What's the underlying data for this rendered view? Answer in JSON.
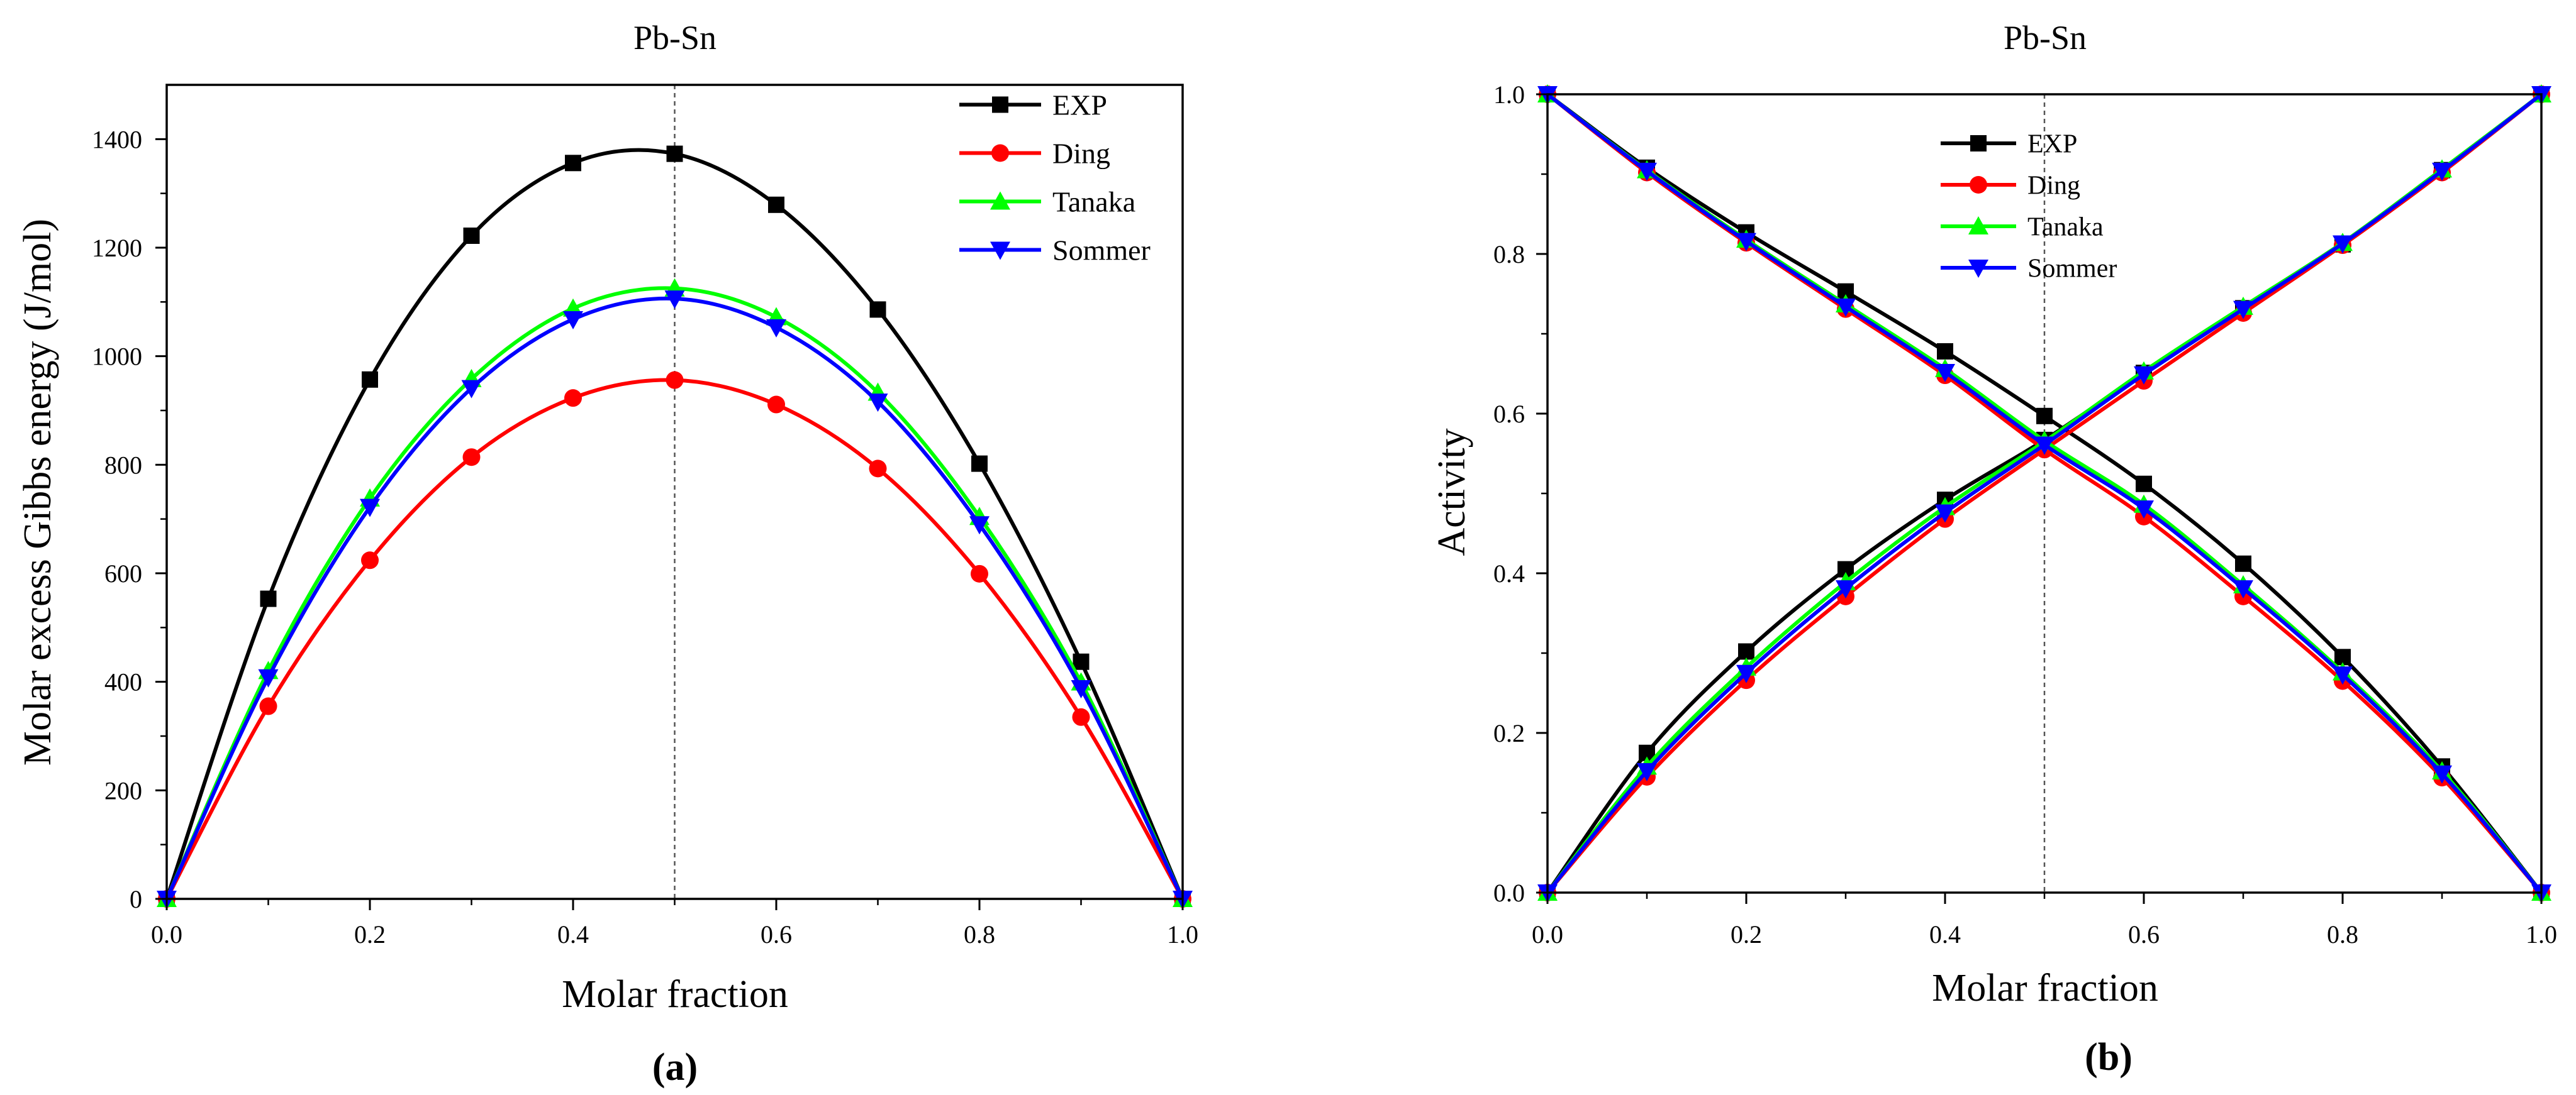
{
  "chart_data": [
    {
      "type": "line",
      "title": "Pb-Sn",
      "panel_label": "(a)",
      "xlabel": "Molar fraction",
      "ylabel": "Molar excess Gibbs energy (J/mol)",
      "xlim": [
        0,
        1
      ],
      "ylim": [
        0,
        1500
      ],
      "xticks": [
        "0.0",
        "0.2",
        "0.4",
        "0.6",
        "0.8",
        "1.0"
      ],
      "yticks": [
        "0",
        "200",
        "400",
        "600",
        "800",
        "1000",
        "1200",
        "1400"
      ],
      "reference_line_x": 0.5,
      "legend_position": "top-right",
      "x": [
        0,
        0.1,
        0.2,
        0.3,
        0.4,
        0.5,
        0.6,
        0.7,
        0.8,
        0.9,
        1.0
      ],
      "series": [
        {
          "name": "EXP",
          "color": "#000000",
          "marker": "square",
          "values": [
            0,
            553,
            957,
            1222,
            1356,
            1373,
            1279,
            1086,
            802,
            437,
            0
          ]
        },
        {
          "name": "Ding",
          "color": "#ff0000",
          "marker": "circle",
          "values": [
            0,
            355,
            624,
            814,
            923,
            956,
            911,
            793,
            599,
            335,
            0
          ]
        },
        {
          "name": "Tanaka",
          "color": "#00ff00",
          "marker": "triangle-up",
          "values": [
            0,
            420,
            738,
            958,
            1088,
            1125,
            1072,
            933,
            704,
            399,
            0
          ]
        },
        {
          "name": "Sommer",
          "color": "#0000ff",
          "marker": "triangle-down",
          "values": [
            0,
            408,
            722,
            941,
            1068,
            1106,
            1053,
            916,
            690,
            388,
            0
          ]
        }
      ]
    },
    {
      "type": "line",
      "title": "Pb-Sn",
      "panel_label": "(b)",
      "xlabel": "Molar fraction",
      "ylabel": "Activity",
      "xlim": [
        0,
        1
      ],
      "ylim": [
        0,
        1
      ],
      "xticks": [
        "0.0",
        "0.2",
        "0.4",
        "0.6",
        "0.8",
        "1.0"
      ],
      "yticks": [
        "0.0",
        "0.2",
        "0.4",
        "0.6",
        "0.8",
        "1.0"
      ],
      "reference_line_x": 0.5,
      "legend_position": "top-center",
      "x": [
        0,
        0.1,
        0.2,
        0.3,
        0.4,
        0.5,
        0.6,
        0.7,
        0.8,
        0.9,
        1.0
      ],
      "series": [
        {
          "name": "EXP",
          "color": "#000000",
          "marker": "square",
          "values": [
            0,
            0.175,
            0.302,
            0.405,
            0.492,
            0.567,
            0.651,
            0.732,
            0.812,
            0.905,
            1.0
          ],
          "values_2": [
            1.0,
            0.908,
            0.827,
            0.753,
            0.678,
            0.597,
            0.512,
            0.412,
            0.295,
            0.158,
            0
          ]
        },
        {
          "name": "Ding",
          "color": "#ff0000",
          "marker": "circle",
          "values": [
            0,
            0.145,
            0.266,
            0.371,
            0.468,
            0.555,
            0.641,
            0.726,
            0.811,
            0.902,
            1.0
          ],
          "values_2": [
            1.0,
            0.902,
            0.814,
            0.731,
            0.648,
            0.555,
            0.471,
            0.371,
            0.265,
            0.144,
            0
          ]
        },
        {
          "name": "Tanaka",
          "color": "#00ff00",
          "marker": "triangle-up",
          "values": [
            0,
            0.158,
            0.282,
            0.389,
            0.483,
            0.565,
            0.653,
            0.734,
            0.814,
            0.906,
            1.0
          ],
          "values_2": [
            1.0,
            0.905,
            0.818,
            0.737,
            0.656,
            0.566,
            0.486,
            0.385,
            0.276,
            0.152,
            0
          ]
        },
        {
          "name": "Sommer",
          "color": "#0000ff",
          "marker": "triangle-down",
          "values": [
            0,
            0.152,
            0.275,
            0.381,
            0.476,
            0.561,
            0.649,
            0.731,
            0.813,
            0.904,
            1.0
          ],
          "values_2": [
            1.0,
            0.904,
            0.816,
            0.734,
            0.652,
            0.561,
            0.481,
            0.381,
            0.273,
            0.149,
            0
          ]
        }
      ]
    }
  ]
}
